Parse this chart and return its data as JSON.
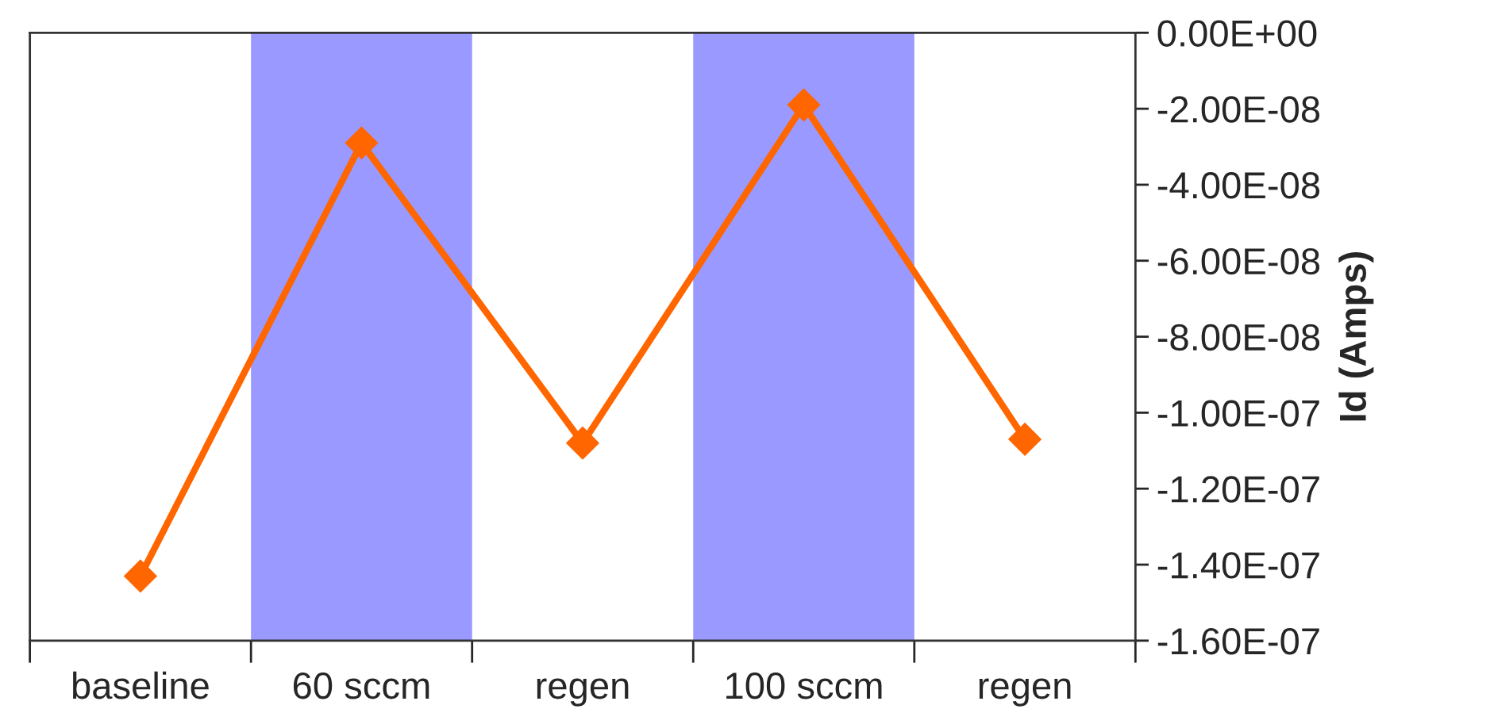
{
  "chart_data": {
    "type": "line",
    "ylabel": "Id (Amps)",
    "categories": [
      "baseline",
      "60 sccm",
      "regen",
      "100 sccm",
      "regen"
    ],
    "series": [
      {
        "color": "#ff6600",
        "values": [
          -1.43e-07,
          -2.9e-08,
          -1.08e-07,
          -1.9e-08,
          -1.07e-07
        ]
      }
    ],
    "marker": "diamond",
    "line_style": "solid",
    "ylim": [
      -1.6e-07,
      0
    ],
    "yticks": [
      {
        "value": -1.6e-07,
        "label": "-1.60E-07"
      },
      {
        "value": -1.4e-07,
        "label": "-1.40E-07"
      },
      {
        "value": -1.2e-07,
        "label": "-1.20E-07"
      },
      {
        "value": -1e-07,
        "label": "-1.00E-07"
      },
      {
        "value": -8e-08,
        "label": "-8.00E-08"
      },
      {
        "value": -6e-08,
        "label": "-6.00E-08"
      },
      {
        "value": -4e-08,
        "label": "-4.00E-08"
      },
      {
        "value": -2e-08,
        "label": "-2.00E-08"
      },
      {
        "value": 0,
        "label": "0.00E+00"
      }
    ],
    "bands": [
      {
        "axis": "x",
        "from": "60 sccm",
        "to": "60 sccm",
        "color": "#9999ff"
      },
      {
        "axis": "x",
        "from": "100 sccm",
        "to": "100 sccm",
        "color": "#9999ff"
      }
    ]
  }
}
